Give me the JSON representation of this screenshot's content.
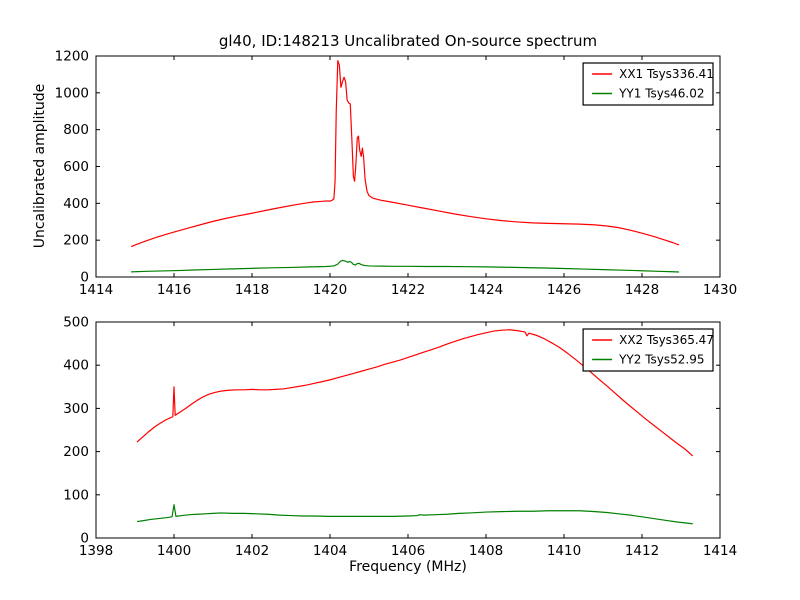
{
  "figure": {
    "title": "gl40, ID:148213 Uncalibrated On-source spectrum",
    "xlabel": "Frequency (MHz)",
    "ylabel": "Uncalibrated amplitude",
    "background": "#ffffff",
    "frame_color": "#000000"
  },
  "chart_data": [
    {
      "type": "line",
      "position": "top",
      "xlim": [
        1414,
        1430
      ],
      "ylim": [
        0,
        1200
      ],
      "xticks": [
        1414,
        1416,
        1418,
        1420,
        1422,
        1424,
        1426,
        1428,
        1430
      ],
      "yticks": [
        0,
        200,
        400,
        600,
        800,
        1000,
        1200
      ],
      "grid": false,
      "legend_position": "upper right",
      "series": [
        {
          "name": "XX1 Tsys336.41",
          "color": "#ff0000",
          "points": [
            [
              1414.9,
              165
            ],
            [
              1415.2,
              190
            ],
            [
              1415.5,
              212
            ],
            [
              1415.8,
              232
            ],
            [
              1416.1,
              250
            ],
            [
              1416.4,
              268
            ],
            [
              1416.7,
              285
            ],
            [
              1417.0,
              302
            ],
            [
              1417.3,
              317
            ],
            [
              1417.6,
              330
            ],
            [
              1417.9,
              342
            ],
            [
              1418.2,
              355
            ],
            [
              1418.5,
              368
            ],
            [
              1418.8,
              380
            ],
            [
              1419.1,
              392
            ],
            [
              1419.4,
              402
            ],
            [
              1419.6,
              408
            ],
            [
              1419.8,
              411
            ],
            [
              1419.9,
              413
            ],
            [
              1420.0,
              412
            ],
            [
              1420.05,
              416
            ],
            [
              1420.1,
              424
            ],
            [
              1420.13,
              520
            ],
            [
              1420.16,
              900
            ],
            [
              1420.2,
              1175
            ],
            [
              1420.24,
              1150
            ],
            [
              1420.28,
              1030
            ],
            [
              1420.32,
              1060
            ],
            [
              1420.36,
              1085
            ],
            [
              1420.4,
              1060
            ],
            [
              1420.44,
              960
            ],
            [
              1420.48,
              945
            ],
            [
              1420.52,
              940
            ],
            [
              1420.56,
              750
            ],
            [
              1420.6,
              545
            ],
            [
              1420.63,
              520
            ],
            [
              1420.66,
              600
            ],
            [
              1420.7,
              755
            ],
            [
              1420.73,
              765
            ],
            [
              1420.76,
              690
            ],
            [
              1420.8,
              655
            ],
            [
              1420.83,
              700
            ],
            [
              1420.86,
              655
            ],
            [
              1420.9,
              530
            ],
            [
              1420.95,
              465
            ],
            [
              1421.0,
              442
            ],
            [
              1421.1,
              428
            ],
            [
              1421.3,
              417
            ],
            [
              1421.6,
              406
            ],
            [
              1422.0,
              390
            ],
            [
              1422.4,
              374
            ],
            [
              1422.8,
              358
            ],
            [
              1423.2,
              342
            ],
            [
              1423.6,
              328
            ],
            [
              1424.0,
              316
            ],
            [
              1424.4,
              306
            ],
            [
              1424.8,
              299
            ],
            [
              1425.2,
              294
            ],
            [
              1425.6,
              291
            ],
            [
              1426.0,
              289
            ],
            [
              1426.4,
              287
            ],
            [
              1426.8,
              283
            ],
            [
              1427.1,
              277
            ],
            [
              1427.4,
              268
            ],
            [
              1427.7,
              254
            ],
            [
              1428.0,
              238
            ],
            [
              1428.3,
              220
            ],
            [
              1428.6,
              200
            ],
            [
              1428.8,
              186
            ],
            [
              1428.95,
              174
            ]
          ]
        },
        {
          "name": "YY1 Tsys46.02",
          "color": "#008000",
          "points": [
            [
              1414.9,
              28
            ],
            [
              1415.3,
              31
            ],
            [
              1415.7,
              33
            ],
            [
              1416.1,
              35
            ],
            [
              1416.5,
              38
            ],
            [
              1417.0,
              41
            ],
            [
              1417.5,
              44
            ],
            [
              1418.0,
              47
            ],
            [
              1418.5,
              50
            ],
            [
              1419.0,
              52
            ],
            [
              1419.5,
              55
            ],
            [
              1419.9,
              57
            ],
            [
              1420.1,
              60
            ],
            [
              1420.2,
              70
            ],
            [
              1420.27,
              86
            ],
            [
              1420.33,
              90
            ],
            [
              1420.4,
              86
            ],
            [
              1420.45,
              80
            ],
            [
              1420.5,
              84
            ],
            [
              1420.55,
              80
            ],
            [
              1420.6,
              68
            ],
            [
              1420.65,
              65
            ],
            [
              1420.7,
              73
            ],
            [
              1420.75,
              74
            ],
            [
              1420.8,
              67
            ],
            [
              1420.9,
              62
            ],
            [
              1421.0,
              60
            ],
            [
              1421.3,
              59
            ],
            [
              1421.6,
              58
            ],
            [
              1422.0,
              58
            ],
            [
              1422.5,
              57
            ],
            [
              1423.0,
              57
            ],
            [
              1423.5,
              56
            ],
            [
              1424.0,
              55
            ],
            [
              1424.5,
              53
            ],
            [
              1425.0,
              51
            ],
            [
              1425.5,
              49
            ],
            [
              1426.0,
              46
            ],
            [
              1426.5,
              43
            ],
            [
              1427.0,
              40
            ],
            [
              1427.5,
              37
            ],
            [
              1428.0,
              34
            ],
            [
              1428.4,
              31
            ],
            [
              1428.7,
              29
            ],
            [
              1428.95,
              27
            ]
          ]
        }
      ]
    },
    {
      "type": "line",
      "position": "bottom",
      "xlim": [
        1398,
        1414
      ],
      "ylim": [
        0,
        500
      ],
      "xticks": [
        1398,
        1400,
        1402,
        1404,
        1406,
        1408,
        1410,
        1412,
        1414
      ],
      "yticks": [
        0,
        100,
        200,
        300,
        400,
        500
      ],
      "grid": false,
      "legend_position": "upper right",
      "series": [
        {
          "name": "XX2 Tsys365.47",
          "color": "#ff0000",
          "points": [
            [
              1399.05,
              222
            ],
            [
              1399.2,
              234
            ],
            [
              1399.35,
              246
            ],
            [
              1399.5,
              257
            ],
            [
              1399.65,
              266
            ],
            [
              1399.8,
              274
            ],
            [
              1399.9,
              278
            ],
            [
              1399.97,
              281
            ],
            [
              1400.0,
              350
            ],
            [
              1400.03,
              284
            ],
            [
              1400.15,
              291
            ],
            [
              1400.3,
              300
            ],
            [
              1400.45,
              310
            ],
            [
              1400.6,
              319
            ],
            [
              1400.75,
              327
            ],
            [
              1400.9,
              333
            ],
            [
              1401.05,
              337
            ],
            [
              1401.2,
              340
            ],
            [
              1401.4,
              342
            ],
            [
              1401.6,
              343
            ],
            [
              1401.8,
              343
            ],
            [
              1402.0,
              344
            ],
            [
              1402.2,
              343
            ],
            [
              1402.4,
              343
            ],
            [
              1402.6,
              344
            ],
            [
              1402.8,
              345
            ],
            [
              1403.0,
              348
            ],
            [
              1403.2,
              351
            ],
            [
              1403.4,
              354
            ],
            [
              1403.6,
              358
            ],
            [
              1403.8,
              362
            ],
            [
              1404.0,
              366
            ],
            [
              1404.2,
              371
            ],
            [
              1404.4,
              376
            ],
            [
              1404.6,
              381
            ],
            [
              1404.8,
              386
            ],
            [
              1405.0,
              391
            ],
            [
              1405.2,
              396
            ],
            [
              1405.4,
              402
            ],
            [
              1405.6,
              407
            ],
            [
              1405.8,
              412
            ],
            [
              1406.0,
              418
            ],
            [
              1406.2,
              424
            ],
            [
              1406.4,
              430
            ],
            [
              1406.6,
              436
            ],
            [
              1406.8,
              442
            ],
            [
              1407.0,
              449
            ],
            [
              1407.2,
              455
            ],
            [
              1407.4,
              461
            ],
            [
              1407.6,
              466
            ],
            [
              1407.8,
              471
            ],
            [
              1408.0,
              475
            ],
            [
              1408.2,
              479
            ],
            [
              1408.4,
              481
            ],
            [
              1408.6,
              482
            ],
            [
              1408.8,
              480
            ],
            [
              1409.0,
              477
            ],
            [
              1409.05,
              468
            ],
            [
              1409.1,
              474
            ],
            [
              1409.3,
              469
            ],
            [
              1409.5,
              461
            ],
            [
              1409.7,
              451
            ],
            [
              1409.9,
              440
            ],
            [
              1410.1,
              427
            ],
            [
              1410.3,
              413
            ],
            [
              1410.5,
              398
            ],
            [
              1410.7,
              383
            ],
            [
              1410.9,
              367
            ],
            [
              1411.1,
              352
            ],
            [
              1411.3,
              336
            ],
            [
              1411.5,
              320
            ],
            [
              1411.7,
              305
            ],
            [
              1411.9,
              290
            ],
            [
              1412.1,
              275
            ],
            [
              1412.3,
              261
            ],
            [
              1412.5,
              247
            ],
            [
              1412.7,
              233
            ],
            [
              1412.9,
              219
            ],
            [
              1413.1,
              206
            ],
            [
              1413.3,
              190
            ]
          ]
        },
        {
          "name": "YY2 Tsys52.95",
          "color": "#008000",
          "points": [
            [
              1399.05,
              38
            ],
            [
              1399.2,
              40
            ],
            [
              1399.4,
              43
            ],
            [
              1399.6,
              45
            ],
            [
              1399.8,
              47
            ],
            [
              1399.95,
              49
            ],
            [
              1400.0,
              77
            ],
            [
              1400.05,
              50
            ],
            [
              1400.2,
              52
            ],
            [
              1400.4,
              54
            ],
            [
              1400.6,
              55
            ],
            [
              1400.8,
              56
            ],
            [
              1401.0,
              57
            ],
            [
              1401.2,
              58
            ],
            [
              1401.5,
              57
            ],
            [
              1401.8,
              57
            ],
            [
              1402.1,
              56
            ],
            [
              1402.4,
              55
            ],
            [
              1402.7,
              53
            ],
            [
              1403.0,
              52
            ],
            [
              1403.3,
              51
            ],
            [
              1403.6,
              51
            ],
            [
              1404.0,
              50
            ],
            [
              1404.4,
              50
            ],
            [
              1404.8,
              50
            ],
            [
              1405.2,
              50
            ],
            [
              1405.6,
              50
            ],
            [
              1406.0,
              51
            ],
            [
              1406.25,
              52
            ],
            [
              1406.3,
              54
            ],
            [
              1406.4,
              53
            ],
            [
              1406.7,
              54
            ],
            [
              1407.0,
              55
            ],
            [
              1407.3,
              57
            ],
            [
              1407.6,
              58
            ],
            [
              1408.0,
              60
            ],
            [
              1408.4,
              61
            ],
            [
              1408.8,
              62
            ],
            [
              1409.2,
              62
            ],
            [
              1409.6,
              63
            ],
            [
              1410.0,
              63
            ],
            [
              1410.4,
              63
            ],
            [
              1410.8,
              61
            ],
            [
              1411.1,
              59
            ],
            [
              1411.4,
              56
            ],
            [
              1411.7,
              53
            ],
            [
              1412.0,
              49
            ],
            [
              1412.3,
              45
            ],
            [
              1412.6,
              41
            ],
            [
              1412.9,
              37
            ],
            [
              1413.1,
              35
            ],
            [
              1413.3,
              33
            ]
          ]
        }
      ]
    }
  ]
}
